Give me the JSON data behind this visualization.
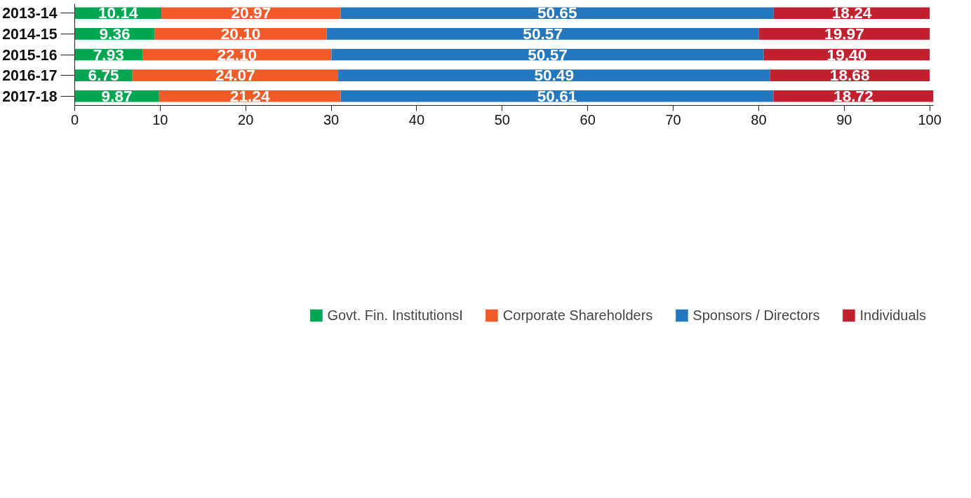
{
  "chart_data": {
    "type": "bar",
    "orientation": "horizontal",
    "stacked": true,
    "categories": [
      "2013-14",
      "2014-15",
      "2015-16",
      "2016-17",
      "2017-18"
    ],
    "series": [
      {
        "name": "Govt. Fin. InstitutionsI",
        "color": "#00a651",
        "values": [
          10.14,
          9.36,
          7.93,
          6.75,
          9.87
        ],
        "value_labels": [
          "10.14",
          "9.36",
          "7.93",
          "6.75",
          "9.87"
        ]
      },
      {
        "name": "Corporate Shareholders",
        "color": "#f15a29",
        "values": [
          20.97,
          20.1,
          22.1,
          24.07,
          21.24
        ],
        "value_labels": [
          "20.97",
          "20.10",
          "22.10",
          "24.07",
          "21.24"
        ]
      },
      {
        "name": "Sponsors / Directors",
        "color": "#2577bd",
        "values": [
          50.65,
          50.57,
          50.57,
          50.49,
          50.61
        ],
        "value_labels": [
          "50.65",
          "50.57",
          "50.57",
          "50.49",
          "50.61"
        ]
      },
      {
        "name": "Individuals",
        "color": "#c1202f",
        "values": [
          18.24,
          19.97,
          19.4,
          18.68,
          18.72
        ],
        "value_labels": [
          "18.24",
          "19.97",
          "19.40",
          "18.68",
          "18.72"
        ]
      }
    ],
    "xlim": [
      0,
      100.44
    ],
    "xticks": [
      0,
      10,
      20,
      30,
      40,
      50,
      60,
      70,
      80,
      90,
      100
    ],
    "grid": false,
    "legend": "bottom"
  }
}
